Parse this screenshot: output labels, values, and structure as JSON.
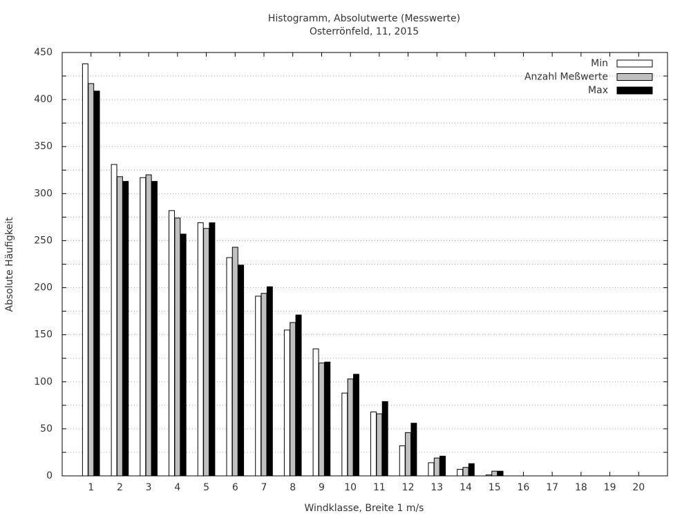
{
  "chart_data": {
    "type": "bar",
    "title": "Histogramm, Absolutwerte (Messwerte)",
    "subtitle": "Osterrönfeld, 11, 2015",
    "xlabel": "Windklasse, Breite 1 m/s",
    "ylabel": "Absolute Häufigkeit",
    "x": [
      1,
      2,
      3,
      4,
      5,
      6,
      7,
      8,
      9,
      10,
      11,
      12,
      13,
      14,
      15,
      16,
      17,
      18,
      19,
      20
    ],
    "xlim": [
      0,
      21
    ],
    "xticks": [
      1,
      2,
      3,
      4,
      5,
      6,
      7,
      8,
      9,
      10,
      11,
      12,
      13,
      14,
      15,
      16,
      17,
      18,
      19,
      20
    ],
    "ylim": [
      0,
      450
    ],
    "yticks": [
      0,
      50,
      100,
      150,
      200,
      250,
      300,
      350,
      400,
      450
    ],
    "yminorticks": [
      25,
      75,
      125,
      175,
      225,
      275,
      325,
      375,
      425
    ],
    "grid": true,
    "legend": "top-right",
    "series": [
      {
        "name": "Min",
        "color": "#ffffff",
        "values": [
          438,
          331,
          317,
          282,
          269,
          232,
          191,
          155,
          135,
          88,
          68,
          32,
          14,
          7,
          1,
          0,
          0,
          0,
          0,
          0
        ]
      },
      {
        "name": "Anzahl Meßwerte",
        "color": "#c0c0c0",
        "values": [
          417,
          318,
          320,
          274,
          263,
          243,
          194,
          163,
          120,
          103,
          66,
          46,
          19,
          9,
          5,
          0,
          0,
          0,
          0,
          0
        ]
      },
      {
        "name": "Max",
        "color": "#000000",
        "values": [
          409,
          313,
          313,
          257,
          269,
          224,
          201,
          171,
          121,
          108,
          79,
          56,
          21,
          13,
          5,
          0,
          0,
          0,
          0,
          0
        ]
      }
    ]
  }
}
